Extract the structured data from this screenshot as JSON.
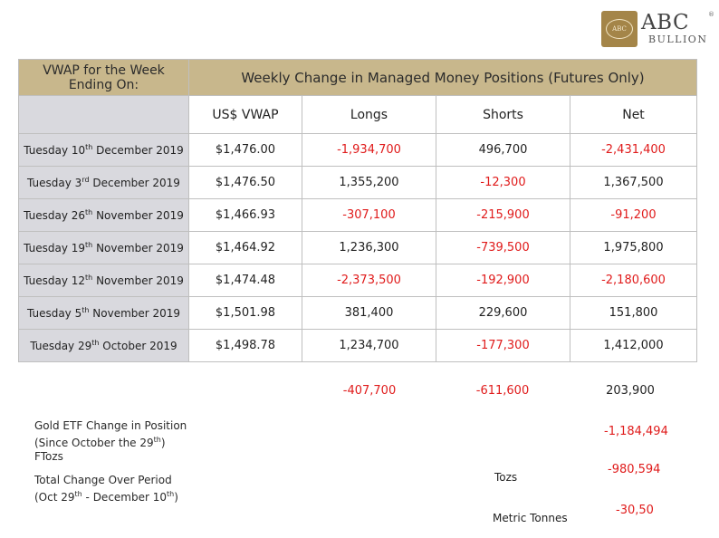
{
  "brand": {
    "oval_text": "ABC",
    "name_top": "ABC",
    "name_bottom": "BULLION",
    "reg": "®"
  },
  "table": {
    "top_left_header": "VWAP for the Week Ending On:",
    "top_right_header": "Weekly Change in Managed Money Positions (Futures Only)",
    "columns": [
      "US$ VWAP",
      "Longs",
      "Shorts",
      "Net"
    ],
    "rows": [
      {
        "date_pre": "Tuesday 10",
        "date_sup": "th",
        "date_post": " December 2019",
        "vwap": "$1,476.00",
        "longs": "-1,934,700",
        "shorts": "496,700",
        "net": "-2,431,400"
      },
      {
        "date_pre": "Tuesday 3",
        "date_sup": "rd",
        "date_post": " December 2019",
        "vwap": "$1,476.50",
        "longs": "1,355,200",
        "shorts": "-12,300",
        "net": "1,367,500"
      },
      {
        "date_pre": "Tuesday 26",
        "date_sup": "th",
        "date_post": " November 2019",
        "vwap": "$1,466.93",
        "longs": "-307,100",
        "shorts": "-215,900",
        "net": "-91,200"
      },
      {
        "date_pre": "Tuesday 19",
        "date_sup": "th",
        "date_post": " November 2019",
        "vwap": "$1,464.92",
        "longs": "1,236,300",
        "shorts": "-739,500",
        "net": "1,975,800"
      },
      {
        "date_pre": "Tuesday 12",
        "date_sup": "th",
        "date_post": " November 2019",
        "vwap": "$1,474.48",
        "longs": "-2,373,500",
        "shorts": "-192,900",
        "net": "-2,180,600"
      },
      {
        "date_pre": "Tuesday 5",
        "date_sup": "th",
        "date_post": " November 2019",
        "vwap": "$1,501.98",
        "longs": "381,400",
        "shorts": "229,600",
        "net": "151,800"
      },
      {
        "date_pre": "Tuesday 29",
        "date_sup": "th",
        "date_post": " October 2019",
        "vwap": "$1,498.78",
        "longs": "1,234,700",
        "shorts": "-177,300",
        "net": "1,412,000"
      }
    ]
  },
  "totals": {
    "longs": "-407,700",
    "shorts": "-611,600",
    "net": "203,900"
  },
  "etf": {
    "line1": "Gold ETF Change in Position",
    "line2_pre": "(Since October the 29",
    "line2_sup": "th",
    "line2_post": ")",
    "line3": "FTozs",
    "value": "-1,184,494"
  },
  "period": {
    "line1": "Total Change Over Period",
    "line2_pre": "(Oct 29",
    "line2_sup": "th",
    "line2_mid": " - December 10",
    "line2_sup2": "th",
    "line2_post": ")",
    "tozs_label": "Tozs",
    "tozs_value": "-980,594",
    "tonnes_label": "Metric Tonnes",
    "tonnes_value": "-30,50"
  },
  "colors": {
    "gold_header": "#c8b78c",
    "grey_header": "#d9d9de",
    "negative": "#e01b1b"
  }
}
